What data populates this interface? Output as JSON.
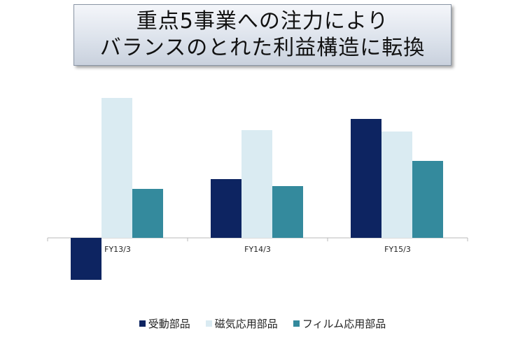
{
  "title": {
    "line1": "重点5事業への注力により",
    "line2": "バランスのとれた利益構造に転換"
  },
  "chart_data": {
    "type": "bar",
    "categories": [
      "FY13/3",
      "FY14/3",
      "FY15/3"
    ],
    "series": [
      {
        "name": "受動部品",
        "color": "#0d2461",
        "values": [
          -0.3,
          0.42,
          0.85
        ]
      },
      {
        "name": "磁気応用部品",
        "color": "#daebf2",
        "values": [
          1.0,
          0.77,
          0.76
        ]
      },
      {
        "name": "フィルム応用部品",
        "color": "#348a9d",
        "values": [
          0.35,
          0.37,
          0.55
        ]
      }
    ],
    "ylim": [
      -0.35,
      1.0
    ],
    "grid": false,
    "legend": "bottom",
    "xlabel": "",
    "ylabel": ""
  }
}
